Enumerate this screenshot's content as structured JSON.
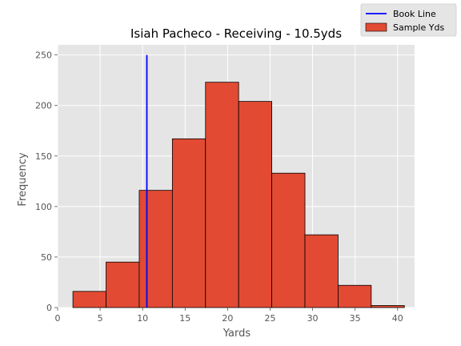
{
  "chart_data": {
    "type": "bar",
    "subtype": "histogram",
    "title": "Isiah Pacheco - Receiving - 10.5yds",
    "xlabel": "Yards",
    "ylabel": "Frequency",
    "xlim": [
      0,
      42
    ],
    "ylim": [
      0,
      260
    ],
    "xticks": [
      0,
      5,
      10,
      15,
      20,
      25,
      30,
      35,
      40
    ],
    "yticks": [
      0,
      50,
      100,
      150,
      200,
      250
    ],
    "grid": true,
    "legend_placement": "top-right",
    "bins": [
      {
        "x0": 1.8,
        "x1": 5.7,
        "count": 16
      },
      {
        "x0": 5.7,
        "x1": 9.6,
        "count": 45
      },
      {
        "x0": 9.6,
        "x1": 13.5,
        "count": 116
      },
      {
        "x0": 13.5,
        "x1": 17.4,
        "count": 167
      },
      {
        "x0": 17.4,
        "x1": 21.3,
        "count": 223
      },
      {
        "x0": 21.3,
        "x1": 25.2,
        "count": 204
      },
      {
        "x0": 25.2,
        "x1": 29.1,
        "count": 133
      },
      {
        "x0": 29.1,
        "x1": 33.0,
        "count": 72
      },
      {
        "x0": 33.0,
        "x1": 36.9,
        "count": 22
      },
      {
        "x0": 36.9,
        "x1": 40.8,
        "count": 2
      }
    ],
    "vline": {
      "x": 10.5,
      "y0": 0,
      "y1": 250
    },
    "series": [
      {
        "name": "Book Line",
        "type": "line",
        "color": "#0000ff"
      },
      {
        "name": "Sample Yds",
        "type": "bar",
        "color": "#e24a33"
      }
    ],
    "colors": {
      "plot_bg": "#e5e5e5",
      "grid": "#ffffff",
      "bar_fill": "#e24a33",
      "bar_edge": "#000000",
      "line": "#0000ff"
    }
  }
}
